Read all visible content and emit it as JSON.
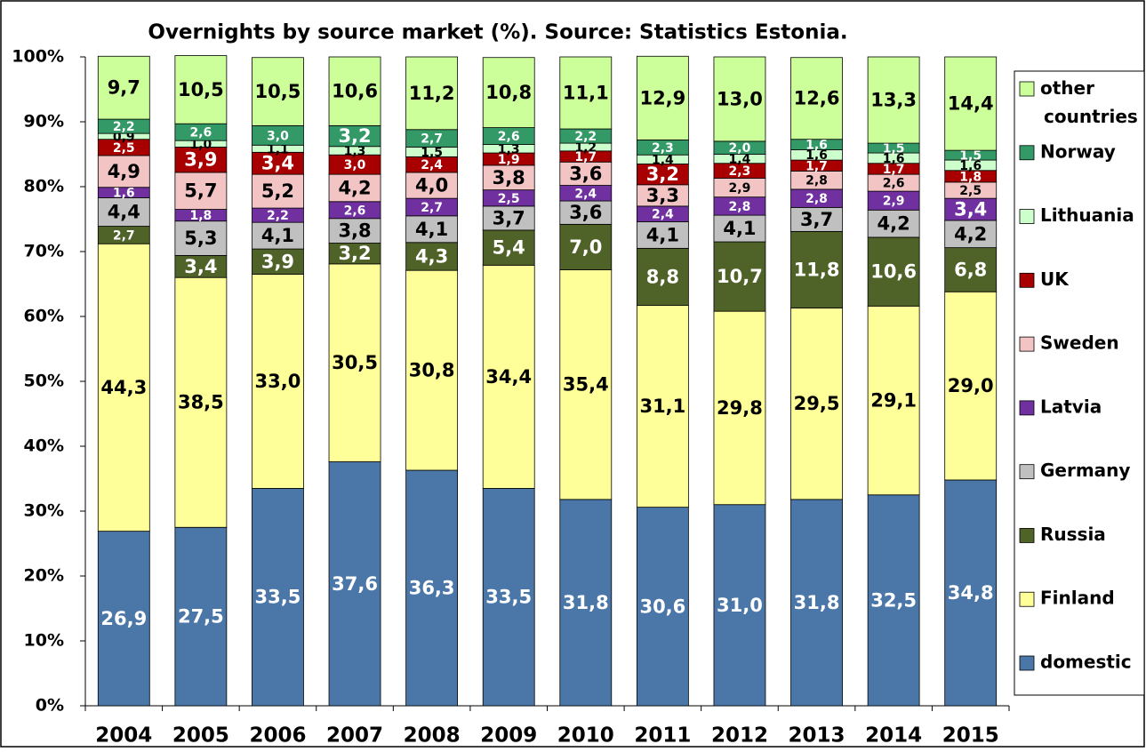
{
  "chart_data": {
    "type": "stacked_bar_100",
    "title": "Overnights by source market (%). Source: Statistics Estonia.",
    "categories": [
      "2004",
      "2005",
      "2006",
      "2007",
      "2008",
      "2009",
      "2010",
      "2011",
      "2012",
      "2013",
      "2014",
      "2015"
    ],
    "ylim": [
      0,
      100
    ],
    "yticks": [
      {
        "value": 0,
        "label": "0%"
      },
      {
        "value": 10,
        "label": "10%"
      },
      {
        "value": 20,
        "label": "20%"
      },
      {
        "value": 30,
        "label": "30%"
      },
      {
        "value": 40,
        "label": "40%"
      },
      {
        "value": 50,
        "label": "50%"
      },
      {
        "value": 60,
        "label": "60%"
      },
      {
        "value": 70,
        "label": "70%"
      },
      {
        "value": 80,
        "label": "80%"
      },
      {
        "value": 90,
        "label": "90%"
      },
      {
        "value": 100,
        "label": "100%"
      }
    ],
    "legend": "right",
    "series": [
      {
        "name": "domestic",
        "color": "#4a76a8",
        "values": [
          26.9,
          27.5,
          33.5,
          37.6,
          36.3,
          33.5,
          31.8,
          30.6,
          31.0,
          31.8,
          32.5,
          34.8
        ],
        "value_labels": [
          "26,9",
          "27,5",
          "33,5",
          "37,6",
          "36,3",
          "33,5",
          "31,8",
          "30,6",
          "31,0",
          "31,8",
          "32,5",
          "34,8"
        ]
      },
      {
        "name": "Finland",
        "color": "#ffff99",
        "values": [
          44.3,
          38.5,
          33.0,
          30.5,
          30.8,
          34.4,
          35.4,
          31.1,
          29.8,
          29.5,
          29.1,
          29.0
        ],
        "value_labels": [
          "44,3",
          "38,5",
          "33,0",
          "30,5",
          "30,8",
          "34,4",
          "35,4",
          "31,1",
          "29,8",
          "29,5",
          "29,1",
          "29,0"
        ]
      },
      {
        "name": "Russia",
        "color": "#4f6228",
        "values": [
          2.7,
          3.4,
          3.9,
          3.2,
          4.3,
          5.4,
          7.0,
          8.8,
          10.7,
          11.8,
          10.6,
          6.8
        ],
        "value_labels": [
          "2,7",
          "3,4",
          "3,9",
          "3,2",
          "4,3",
          "5,4",
          "7,0",
          "8,8",
          "10,7",
          "11,8",
          "10,6",
          "6,8"
        ]
      },
      {
        "name": "Germany",
        "color": "#c0c0c0",
        "values": [
          4.4,
          5.3,
          4.1,
          3.8,
          4.1,
          3.7,
          3.6,
          4.1,
          4.1,
          3.7,
          4.2,
          4.2
        ],
        "value_labels": [
          "4,4",
          "5,3",
          "4,1",
          "3,8",
          "4,1",
          "3,7",
          "3,6",
          "4,1",
          "4,1",
          "3,7",
          "4,2",
          "4,2"
        ]
      },
      {
        "name": "Latvia",
        "color": "#7030a0",
        "values": [
          1.6,
          1.8,
          2.2,
          2.6,
          2.7,
          2.5,
          2.4,
          2.4,
          2.8,
          2.8,
          2.9,
          3.4
        ],
        "value_labels": [
          "1,6",
          "1,8",
          "2,2",
          "2,6",
          "2,7",
          "2,5",
          "2,4",
          "2,4",
          "2,8",
          "2,8",
          "2,9",
          "3,4"
        ]
      },
      {
        "name": "Sweden",
        "color": "#f2c4c4",
        "values": [
          4.9,
          5.7,
          5.2,
          4.2,
          4.0,
          3.8,
          3.6,
          3.3,
          2.9,
          2.8,
          2.6,
          2.5
        ],
        "value_labels": [
          "4,9",
          "5,7",
          "5,2",
          "4,2",
          "4,0",
          "3,8",
          "3,6",
          "3,3",
          "2,9",
          "2,8",
          "2,6",
          "2,5"
        ]
      },
      {
        "name": "UK",
        "color": "#a80000",
        "values": [
          2.5,
          3.9,
          3.4,
          3.0,
          2.4,
          1.9,
          1.7,
          3.2,
          2.3,
          1.7,
          1.7,
          1.8
        ],
        "value_labels": [
          "2,5",
          "3,9",
          "3,4",
          "3,0",
          "2,4",
          "1,9",
          "1,7",
          "3,2",
          "2,3",
          "1,7",
          "1,7",
          "1,8"
        ]
      },
      {
        "name": "Lithuania",
        "color": "#ccffcc",
        "values": [
          0.9,
          1.0,
          1.1,
          1.3,
          1.5,
          1.3,
          1.2,
          1.4,
          1.4,
          1.6,
          1.6,
          1.6
        ],
        "value_labels": [
          "0,9",
          "1,0",
          "1,1",
          "1,3",
          "1,5",
          "1,3",
          "1,2",
          "1,4",
          "1,4",
          "1,6",
          "1,6",
          "1,6"
        ]
      },
      {
        "name": "Norway",
        "color": "#339966",
        "values": [
          2.2,
          2.6,
          3.0,
          3.2,
          2.7,
          2.6,
          2.2,
          2.3,
          2.0,
          1.6,
          1.5,
          1.5
        ],
        "value_labels": [
          "2,2",
          "2,6",
          "3,0",
          "3,2",
          "2,7",
          "2,6",
          "2,2",
          "2,3",
          "2,0",
          "1,6",
          "1,5",
          "1,5"
        ]
      },
      {
        "name": "other countries",
        "color": "#ccff99",
        "values": [
          9.7,
          10.5,
          10.5,
          10.6,
          11.2,
          10.8,
          11.1,
          12.9,
          13.0,
          12.6,
          13.3,
          14.4
        ],
        "value_labels": [
          "9,7",
          "10,5",
          "10,5",
          "10,6",
          "11,2",
          "10,8",
          "11,1",
          "12,9",
          "13,0",
          "12,6",
          "13,3",
          "14,4"
        ]
      }
    ]
  }
}
